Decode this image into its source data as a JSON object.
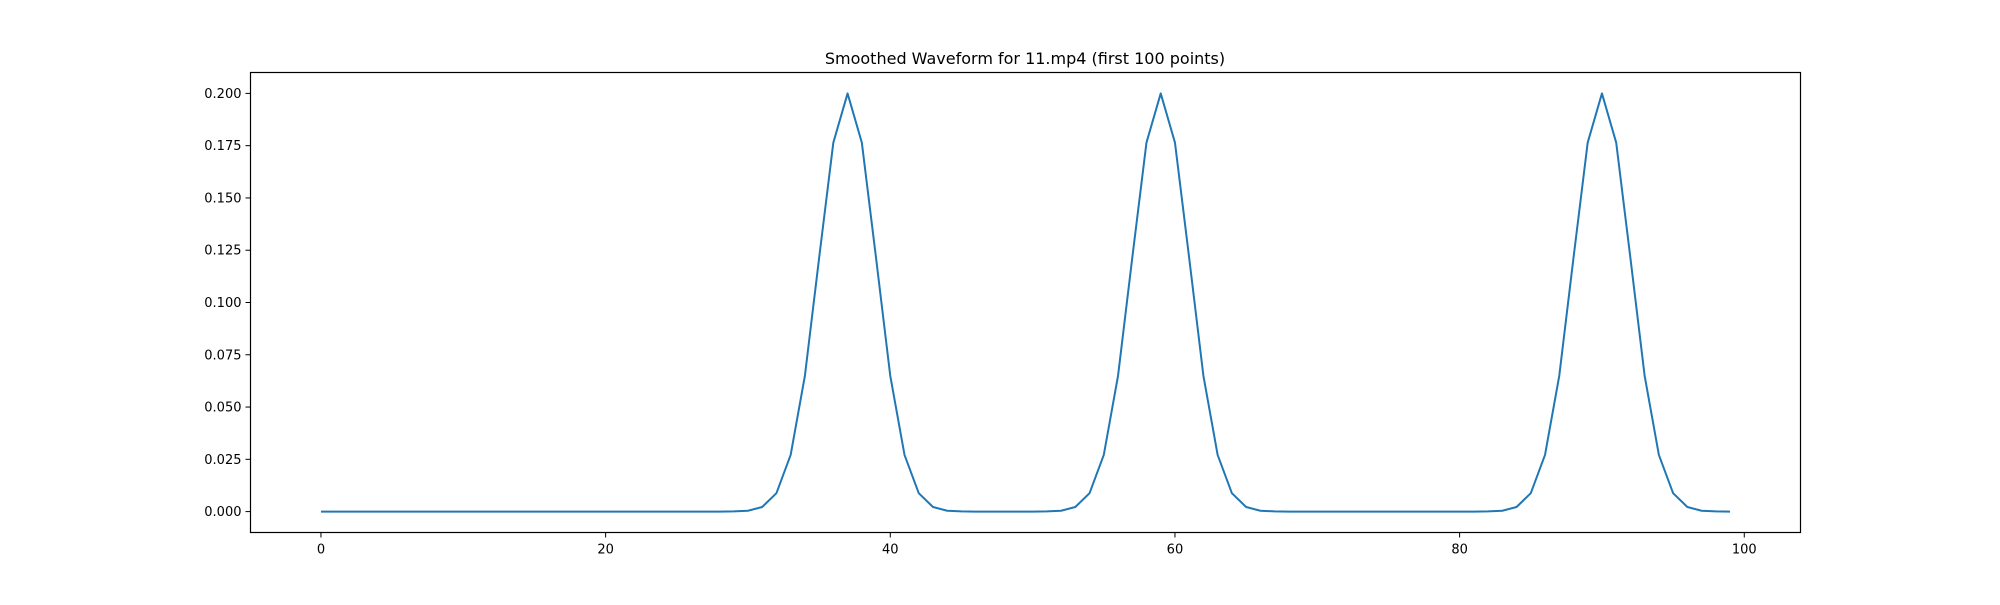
{
  "chart_data": {
    "type": "line",
    "title": "Smoothed Waveform for 11.mp4 (first 100 points)",
    "xlabel": "",
    "ylabel": "",
    "xlim": [
      -4.95,
      103.95
    ],
    "ylim": [
      -0.01,
      0.21
    ],
    "grid": false,
    "line_color": "#1f77b4",
    "x_ticks": [
      0,
      20,
      40,
      60,
      80,
      100
    ],
    "x_tick_labels": [
      "0",
      "20",
      "40",
      "60",
      "80",
      "100"
    ],
    "y_ticks": [
      0.0,
      0.025,
      0.05,
      0.075,
      0.1,
      0.125,
      0.15,
      0.175,
      0.2
    ],
    "y_tick_labels": [
      "0.000",
      "0.025",
      "0.050",
      "0.075",
      "0.100",
      "0.125",
      "0.150",
      "0.175",
      "0.200"
    ],
    "values": [
      0,
      0,
      0,
      0,
      0,
      0,
      0,
      0,
      0,
      0,
      0,
      0,
      0,
      0,
      0,
      0,
      0,
      0,
      0,
      0,
      0,
      0,
      0,
      0,
      0,
      0,
      0,
      0,
      0,
      0.0001,
      0.0004,
      0.0022,
      0.0088,
      0.0271,
      0.0649,
      0.1213,
      0.1765,
      0.2,
      0.1765,
      0.1213,
      0.0649,
      0.0271,
      0.0088,
      0.0022,
      0.0004,
      0.0001,
      0,
      0,
      0,
      0,
      0,
      0.0001,
      0.0004,
      0.0022,
      0.0088,
      0.0271,
      0.0649,
      0.1213,
      0.1765,
      0.2,
      0.1765,
      0.1213,
      0.0649,
      0.0271,
      0.0088,
      0.0022,
      0.0004,
      0.0001,
      0,
      0,
      0,
      0,
      0,
      0,
      0,
      0,
      0,
      0,
      0,
      0,
      0,
      0,
      0.0001,
      0.0004,
      0.0022,
      0.0088,
      0.0271,
      0.0649,
      0.1213,
      0.1765,
      0.2,
      0.1765,
      0.1213,
      0.0649,
      0.0271,
      0.0088,
      0.0022,
      0.0004,
      0.0001,
      0
    ]
  }
}
